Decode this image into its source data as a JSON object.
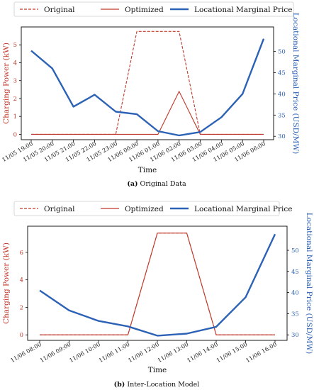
{
  "colors": {
    "power": "#c0392b",
    "lmp": "#2c62b5",
    "frame": "#000000"
  },
  "chart_data": [
    {
      "type": "line",
      "caption_label": "(a)",
      "caption_text": " Original Data",
      "xlabel": "Time",
      "ylabel_left": "Charging Power (kW)",
      "ylabel_right": "Locational Marginal Price (USD/MW)",
      "categories": [
        "11/05 19:00",
        "11/05 20:00",
        "11/05 21:00",
        "11/05 22:00",
        "11/05 23:00",
        "11/06 00:00",
        "11/06 01:00",
        "11/06 02:00",
        "11/06 03:00",
        "11/06 04:00",
        "11/06 05:00",
        "11/06 06:00"
      ],
      "ylim_left": [
        -0.3,
        6.0
      ],
      "yticks_left": [
        0,
        1,
        2,
        3,
        4,
        5
      ],
      "ylim_right": [
        29.2,
        55.8
      ],
      "yticks_right": [
        30,
        35,
        40,
        45,
        50
      ],
      "legend": {
        "placement": "top",
        "labels": [
          "Original",
          "Optimized",
          "Locational Marginal Price"
        ]
      },
      "series": [
        {
          "name": "Original",
          "axis": "left",
          "style": "dashed",
          "values": [
            0,
            0,
            0,
            0,
            0,
            5.75,
            5.75,
            5.75,
            0,
            0,
            0,
            0
          ]
        },
        {
          "name": "Optimized",
          "axis": "left",
          "style": "solid",
          "values": [
            0,
            0,
            0,
            0,
            0,
            0,
            0,
            2.4,
            0,
            0,
            0,
            0
          ]
        },
        {
          "name": "Locational Marginal Price",
          "axis": "right",
          "style": "thick",
          "values": [
            50.2,
            46.0,
            37.0,
            39.8,
            35.8,
            35.2,
            31.2,
            30.2,
            31.0,
            34.5,
            40.0,
            53.0
          ]
        }
      ]
    },
    {
      "type": "line",
      "caption_label": "(b)",
      "caption_text": " Inter-Location Model",
      "xlabel": "Time",
      "ylabel_left": "Charging Power (kW)",
      "ylabel_right": "Locational Marginal Price (USD/MW)",
      "categories": [
        "11/06 08:00",
        "11/06 09:00",
        "11/06 10:00",
        "11/06 11:00",
        "11/06 12:00",
        "11/06 13:00",
        "11/06 14:00",
        "11/06 15:00",
        "11/06 16:00"
      ],
      "ylim_left": [
        -0.4,
        7.9
      ],
      "yticks_left": [
        0,
        2,
        4,
        6
      ],
      "ylim_right": [
        28.7,
        55.7
      ],
      "yticks_right": [
        30,
        35,
        40,
        45,
        50
      ],
      "legend": {
        "placement": "top",
        "labels": [
          "Original",
          "Optimized",
          "Locational Marginal Price"
        ]
      },
      "series": [
        {
          "name": "Original",
          "axis": "left",
          "style": "dashed",
          "values": [
            0,
            0,
            0,
            0,
            7.4,
            7.4,
            0,
            0,
            0
          ]
        },
        {
          "name": "Optimized",
          "axis": "left",
          "style": "solid",
          "values": [
            0,
            0,
            0,
            0,
            7.4,
            7.4,
            0,
            0,
            0
          ]
        },
        {
          "name": "Locational Marginal Price",
          "axis": "right",
          "style": "thick",
          "values": [
            40.5,
            35.8,
            33.3,
            32.0,
            29.8,
            30.3,
            31.9,
            38.9,
            53.8
          ]
        }
      ]
    }
  ]
}
